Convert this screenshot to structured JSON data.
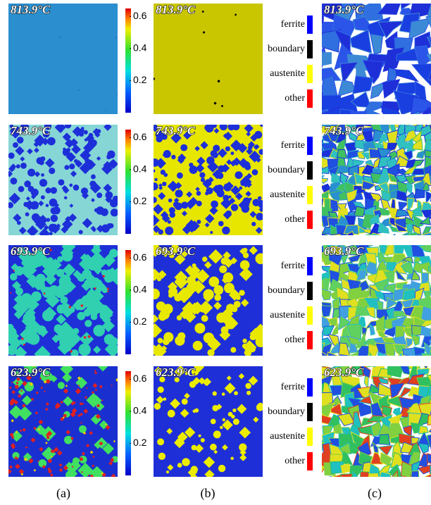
{
  "rows": [
    {
      "temperature": "813.9°C"
    },
    {
      "temperature": "743.9°C"
    },
    {
      "temperature": "693.9°C"
    },
    {
      "temperature": "623.9°C"
    }
  ],
  "colorbar": {
    "lim": [
      0,
      0.65
    ],
    "ticks": [
      0.2,
      0.4,
      0.6
    ]
  },
  "legend": [
    {
      "label": "ferrite",
      "color": "#0000ff"
    },
    {
      "label": "boundary",
      "color": "#000000"
    },
    {
      "label": "austenite",
      "color": "#ffff00"
    },
    {
      "label": "other",
      "color": "#ff0000"
    }
  ],
  "panel_labels": [
    "(a)",
    "(b)",
    "(c)"
  ]
}
